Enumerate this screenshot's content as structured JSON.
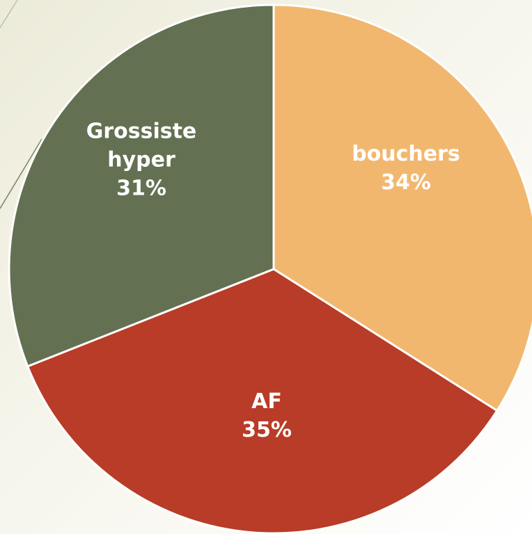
{
  "chart_data": {
    "type": "pie",
    "categories": [
      "bouchers",
      "AF",
      "Grossiste hyper"
    ],
    "values": [
      34,
      35,
      31
    ],
    "value_labels": [
      "34%",
      "35%",
      "31%"
    ],
    "colors": [
      "#f2b76e",
      "#b83c27",
      "#637152"
    ]
  }
}
